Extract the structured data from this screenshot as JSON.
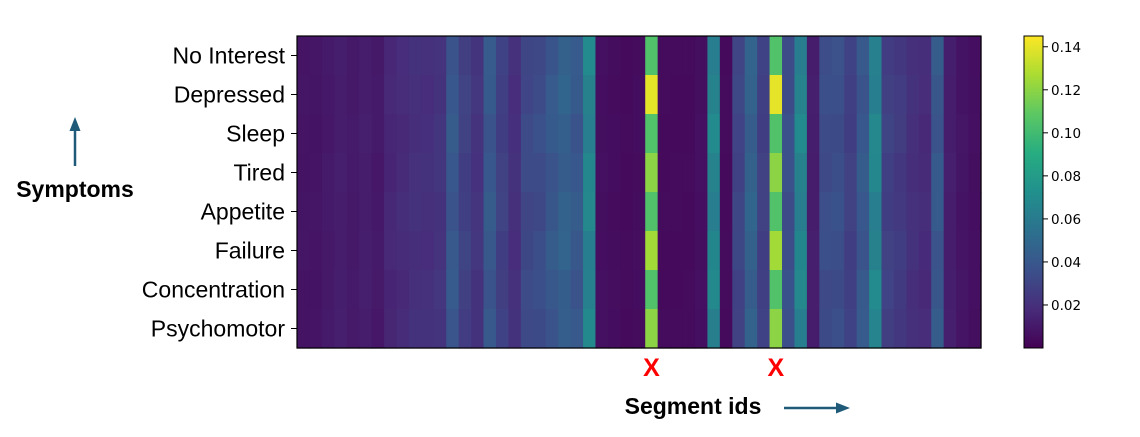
{
  "chart_data": {
    "type": "heatmap",
    "title": "",
    "xlabel": "Segment ids",
    "ylabel": "Symptoms",
    "rows": [
      "No Interest",
      "Depressed",
      "Sleep",
      "Tired",
      "Appetite",
      "Failure",
      "Concentration",
      "Psychomotor"
    ],
    "num_segments": 55,
    "row_peak_values": [
      0.105,
      0.14,
      0.105,
      0.12,
      0.105,
      0.125,
      0.105,
      0.12
    ],
    "column_base_values": [
      0.008,
      0.008,
      0.01,
      0.012,
      0.01,
      0.012,
      0.01,
      0.016,
      0.018,
      0.02,
      0.02,
      0.022,
      0.04,
      0.028,
      0.022,
      0.04,
      0.028,
      0.02,
      0.032,
      0.034,
      0.04,
      0.045,
      0.04,
      0.065,
      0.006,
      0.005,
      0.004,
      0.005,
      0.12,
      0.004,
      0.004,
      0.004,
      0.006,
      0.065,
      0.004,
      0.03,
      0.045,
      0.028,
      0.12,
      0.035,
      0.065,
      0.012,
      0.034,
      0.035,
      0.028,
      0.04,
      0.065,
      0.028,
      0.025,
      0.02,
      0.018,
      0.04,
      0.012,
      0.008,
      0.006
    ],
    "highlight_segments": [
      28,
      38
    ],
    "highlight_marker": "X",
    "colorscale": "viridis",
    "color_range": [
      0,
      0.145
    ],
    "colorbar_ticks": [
      "0.02",
      "0.04",
      "0.06",
      "0.08",
      "0.10",
      "0.12",
      "0.14"
    ],
    "colorbar_tick_values": [
      0.02,
      0.04,
      0.06,
      0.08,
      0.1,
      0.12,
      0.14
    ],
    "annotations": [
      "Symptoms",
      "Segment ids"
    ],
    "arrow_color": "#1f5a78"
  }
}
